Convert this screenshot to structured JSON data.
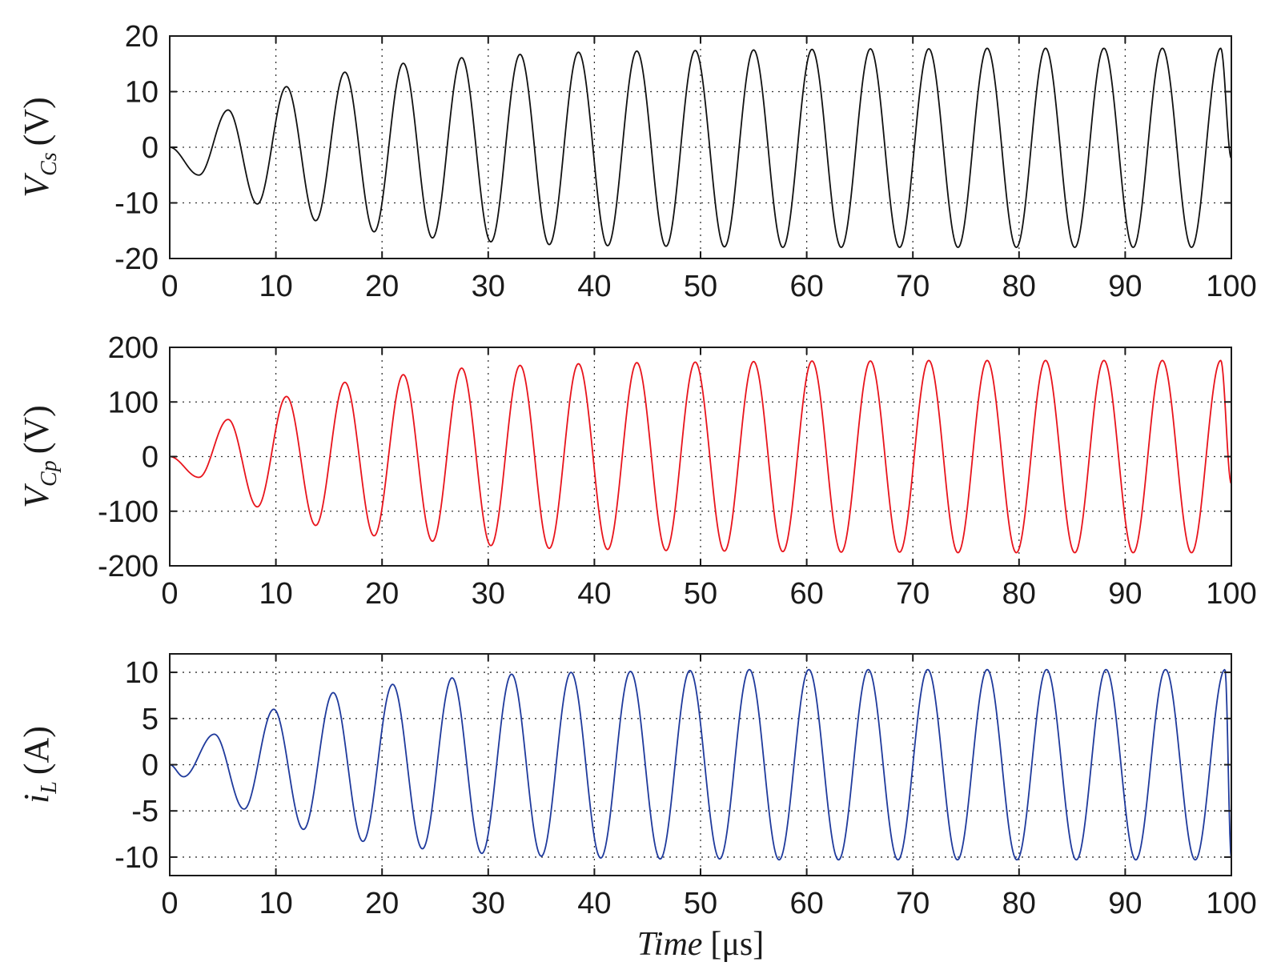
{
  "chart_data": [
    {
      "type": "line",
      "ylabel_main": "V",
      "ylabel_sub": "Cs",
      "ylabel_unit": "(V)",
      "xlim": [
        0,
        100
      ],
      "ylim": [
        -20,
        20
      ],
      "xticks": [
        0,
        10,
        20,
        30,
        40,
        50,
        60,
        70,
        80,
        90,
        100
      ],
      "xtick_labels": [
        "0",
        "10",
        "20",
        "30",
        "40",
        "50",
        "60",
        "70",
        "80",
        "90",
        "100"
      ],
      "yticks": [
        -20,
        -10,
        0,
        10,
        20
      ],
      "ytick_labels": [
        "-20",
        "-10",
        "0",
        "10",
        "20"
      ],
      "grid": true,
      "color": "#111111",
      "series": [
        {
          "x": [
            0,
            2.75,
            5.5,
            8.25,
            11.0,
            13.75,
            16.5,
            19.25,
            22.0,
            24.75,
            27.5,
            30.25,
            33.0,
            35.75,
            38.5,
            41.25,
            44.0,
            46.75,
            49.5,
            52.25,
            55.0,
            57.75,
            60.5,
            63.25,
            66.0,
            68.75,
            71.5,
            74.25,
            77.0,
            79.75,
            82.5,
            85.25,
            88.0,
            90.75,
            93.5,
            96.25,
            99.0,
            100
          ],
          "y": [
            0,
            -5,
            6.7,
            -10.2,
            10.9,
            -13.2,
            13.5,
            -15.2,
            15.1,
            -16.3,
            16.1,
            -17.0,
            16.7,
            -17.5,
            17.1,
            -17.7,
            17.3,
            -17.8,
            17.4,
            -17.9,
            17.5,
            -18.0,
            17.6,
            -18.0,
            17.7,
            -18.0,
            17.7,
            -18.0,
            17.8,
            -18.0,
            17.8,
            -18.0,
            17.8,
            -18.0,
            17.8,
            -18.0,
            17.8,
            -2.0
          ]
        }
      ]
    },
    {
      "type": "line",
      "ylabel_main": "V",
      "ylabel_sub": "Cp",
      "ylabel_unit": "(V)",
      "xlim": [
        0,
        100
      ],
      "ylim": [
        -200,
        200
      ],
      "xticks": [
        0,
        10,
        20,
        30,
        40,
        50,
        60,
        70,
        80,
        90,
        100
      ],
      "xtick_labels": [
        "0",
        "10",
        "20",
        "30",
        "40",
        "50",
        "60",
        "70",
        "80",
        "90",
        "100"
      ],
      "yticks": [
        -200,
        -100,
        0,
        100,
        200
      ],
      "ytick_labels": [
        "-200",
        "-100",
        "0",
        "100",
        "200"
      ],
      "grid": true,
      "color": "#e8141c",
      "series": [
        {
          "x": [
            0,
            2.75,
            5.5,
            8.25,
            11.0,
            13.75,
            16.5,
            19.25,
            22.0,
            24.75,
            27.5,
            30.25,
            33.0,
            35.75,
            38.5,
            41.25,
            44.0,
            46.75,
            49.5,
            52.25,
            55.0,
            57.75,
            60.5,
            63.25,
            66.0,
            68.75,
            71.5,
            74.25,
            77.0,
            79.75,
            82.5,
            85.25,
            88.0,
            90.75,
            93.5,
            96.25,
            99.0,
            100
          ],
          "y": [
            0,
            -38,
            68,
            -92,
            110,
            -126,
            136,
            -145,
            150,
            -155,
            162,
            -163,
            167,
            -168,
            170,
            -170,
            172,
            -172,
            173,
            -173,
            174,
            -174,
            175,
            -175,
            175,
            -175,
            176,
            -176,
            176,
            -176,
            176,
            -176,
            176,
            -176,
            176,
            -176,
            176,
            -50
          ]
        }
      ]
    },
    {
      "type": "line",
      "ylabel_main": "i",
      "ylabel_sub": "L",
      "ylabel_unit": "(A)",
      "xlabel_main": "Time",
      "xlabel_unit": "[μs]",
      "xlim": [
        0,
        100
      ],
      "ylim": [
        -12,
        12
      ],
      "xticks": [
        0,
        10,
        20,
        30,
        40,
        50,
        60,
        70,
        80,
        90,
        100
      ],
      "xtick_labels": [
        "0",
        "10",
        "20",
        "30",
        "40",
        "50",
        "60",
        "70",
        "80",
        "90",
        "100"
      ],
      "yticks": [
        -10,
        -5,
        0,
        5,
        10
      ],
      "ytick_labels": [
        "-10",
        "-5",
        "0",
        "5",
        "10"
      ],
      "grid": true,
      "color": "#1f3a9c",
      "series": [
        {
          "x": [
            0,
            1.3,
            4.2,
            7.0,
            9.8,
            12.6,
            15.4,
            18.2,
            21.0,
            23.8,
            26.6,
            29.4,
            32.2,
            35.0,
            37.8,
            40.6,
            43.4,
            46.2,
            49.0,
            51.8,
            54.6,
            57.4,
            60.2,
            63.0,
            65.8,
            68.6,
            71.4,
            74.2,
            77.0,
            79.8,
            82.6,
            85.4,
            88.2,
            91.0,
            93.8,
            96.6,
            99.4,
            100
          ],
          "y": [
            0,
            -1.3,
            3.3,
            -4.8,
            6.0,
            -7.0,
            7.8,
            -8.3,
            8.7,
            -9.1,
            9.4,
            -9.6,
            9.8,
            -9.9,
            10.0,
            -10.1,
            10.1,
            -10.2,
            10.2,
            -10.2,
            10.3,
            -10.3,
            10.3,
            -10.3,
            10.3,
            -10.3,
            10.3,
            -10.3,
            10.3,
            -10.3,
            10.3,
            -10.3,
            10.3,
            -10.3,
            10.3,
            -10.3,
            10.3,
            -10.2
          ]
        }
      ]
    }
  ]
}
